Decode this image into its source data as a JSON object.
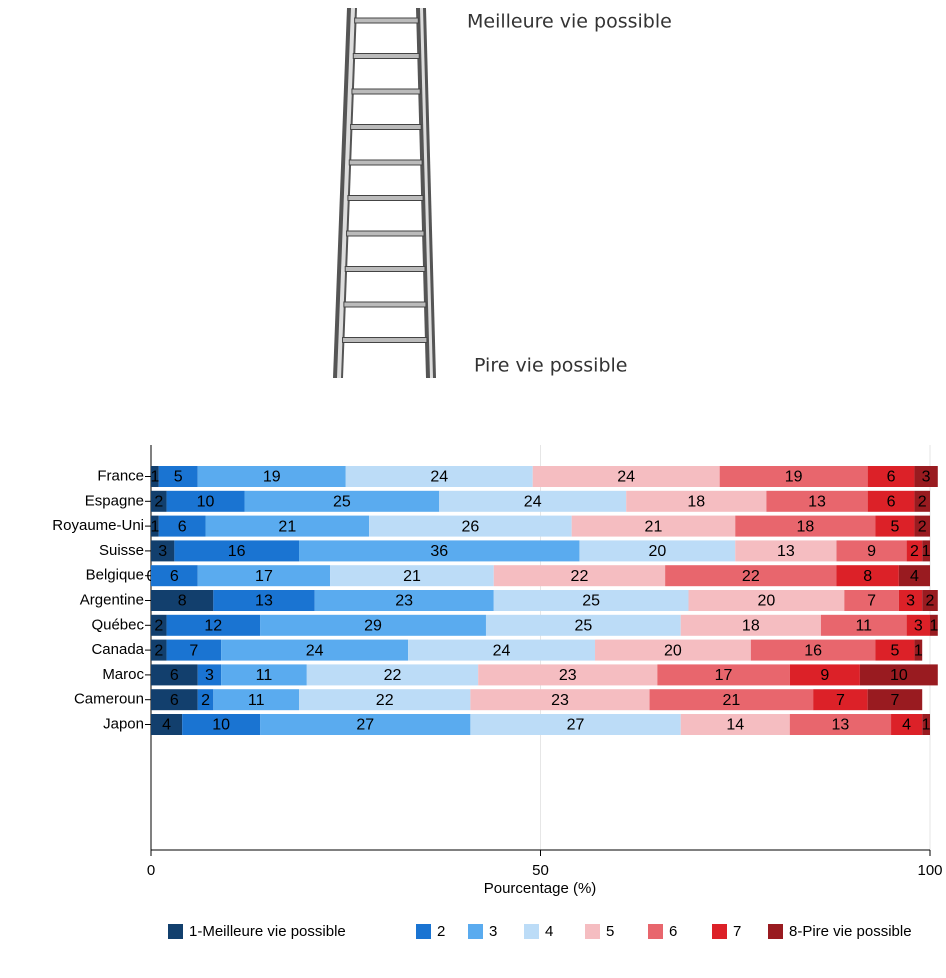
{
  "ladder": {
    "top_label": "Meilleure vie possible",
    "bottom_label": "Pire vie possible"
  },
  "chart_data": {
    "type": "stacked-bar-horizontal",
    "categories": [
      "France",
      "Espagne",
      "Royaume-Uni",
      "Suisse",
      "Belgique",
      "Argentine",
      "Québec",
      "Canada",
      "Maroc",
      "Cameroun",
      "Japon"
    ],
    "series": [
      {
        "name": "1-Meilleure vie possible",
        "color": "#123f6d",
        "values": [
          1,
          2,
          1,
          3,
          0,
          8,
          2,
          2,
          6,
          6,
          4
        ]
      },
      {
        "name": "2",
        "color": "#1a74d2",
        "values": [
          5,
          10,
          6,
          16,
          6,
          13,
          12,
          7,
          3,
          2,
          10
        ]
      },
      {
        "name": "3",
        "color": "#5aabef",
        "values": [
          19,
          25,
          21,
          36,
          17,
          23,
          29,
          24,
          11,
          11,
          27
        ]
      },
      {
        "name": "4",
        "color": "#bcdcf7",
        "values": [
          24,
          24,
          26,
          20,
          21,
          25,
          25,
          24,
          22,
          22,
          27
        ]
      },
      {
        "name": "5",
        "color": "#f5bdc1",
        "values": [
          24,
          18,
          21,
          13,
          22,
          20,
          18,
          20,
          23,
          23,
          14
        ]
      },
      {
        "name": "6",
        "color": "#e8666d",
        "values": [
          19,
          13,
          18,
          9,
          22,
          7,
          11,
          16,
          17,
          21,
          13
        ]
      },
      {
        "name": "7",
        "color": "#dc2128",
        "values": [
          6,
          6,
          5,
          2,
          8,
          3,
          3,
          5,
          9,
          7,
          4
        ]
      },
      {
        "name": "8-Pire vie possible",
        "color": "#991b20",
        "values": [
          3,
          2,
          2,
          1,
          4,
          2,
          1,
          1,
          10,
          7,
          1
        ]
      }
    ],
    "xlabel": "Pourcentage (%)",
    "xlim": [
      0,
      100
    ],
    "xticks": [
      0,
      50,
      100
    ],
    "grid": true,
    "legend": "bottom"
  }
}
